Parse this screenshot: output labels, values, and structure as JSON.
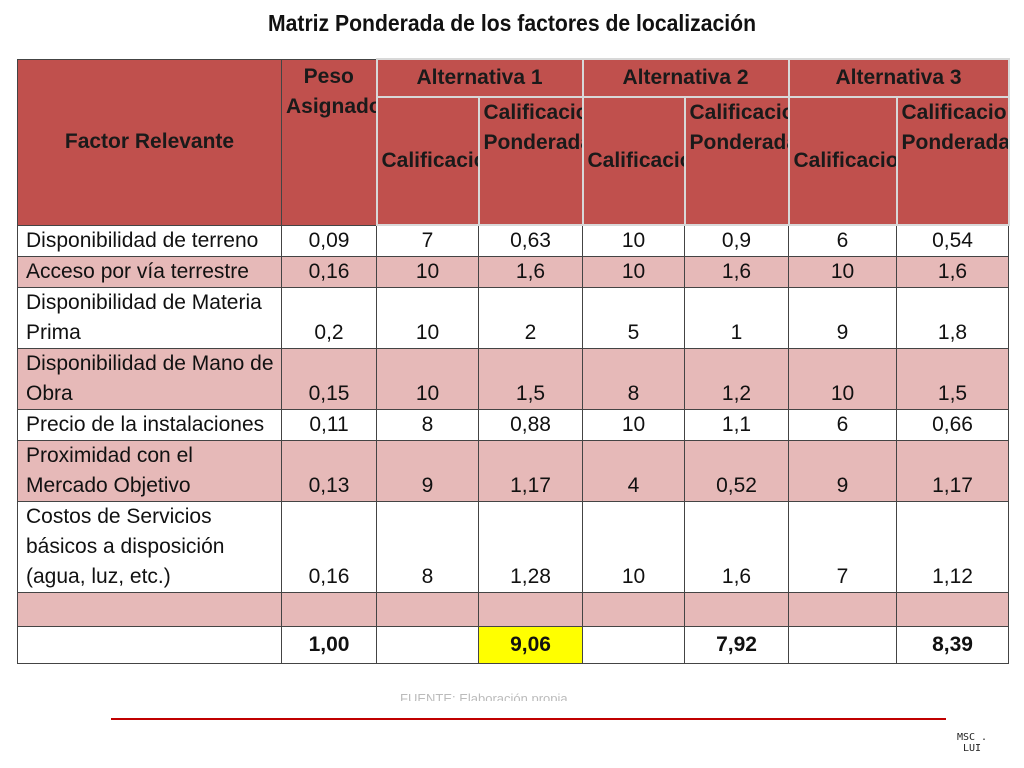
{
  "title": "Matriz Ponderada de los factores de localización",
  "header": {
    "factor": "Factor Relevante",
    "weight": "Peso Asignado",
    "alternatives": [
      "Alternativa 1",
      "Alternativa 2",
      "Alternativa 3"
    ],
    "score_labels": [
      {
        "score": "Calificacion",
        "weighted": "Calificacion Ponderada"
      },
      {
        "score": "Calificacion",
        "weighted": "Calificacion Ponderada"
      },
      {
        "score": "Calificacion",
        "weighted": "Calificacion Ponderada"
      }
    ]
  },
  "rows": [
    {
      "factor": "Disponibilidad de terreno",
      "weight": "0,09",
      "a1": "7",
      "a1w": "0,63",
      "a2": "10",
      "a2w": "0,9",
      "a3": "6",
      "a3w": "0,54"
    },
    {
      "factor": "Acceso por vía terrestre",
      "weight": "0,16",
      "a1": "10",
      "a1w": "1,6",
      "a2": "10",
      "a2w": "1,6",
      "a3": "10",
      "a3w": "1,6"
    },
    {
      "factor": "Disponibilidad de Materia Prima",
      "weight": "0,2",
      "a1": "10",
      "a1w": "2",
      "a2": "5",
      "a2w": "1",
      "a3": "9",
      "a3w": "1,8"
    },
    {
      "factor": "Disponibilidad de Mano de Obra",
      "weight": "0,15",
      "a1": "10",
      "a1w": "1,5",
      "a2": "8",
      "a2w": "1,2",
      "a3": "10",
      "a3w": "1,5"
    },
    {
      "factor": "Precio de la instalaciones",
      "weight": "0,11",
      "a1": "8",
      "a1w": "0,88",
      "a2": "10",
      "a2w": "1,1",
      "a3": "6",
      "a3w": "0,66"
    },
    {
      "factor": "Proximidad con el Mercado Objetivo",
      "weight": "0,13",
      "a1": "9",
      "a1w": "1,17",
      "a2": "4",
      "a2w": "0,52",
      "a3": "9",
      "a3w": "1,17"
    },
    {
      "factor": "Costos de Servicios básicos a disposición (agua, luz, etc.)",
      "weight": "0,16",
      "a1": "8",
      "a1w": "1,28",
      "a2": "10",
      "a2w": "1,6",
      "a3": "7",
      "a3w": "1,12"
    }
  ],
  "totals": {
    "weight": "1,00",
    "a1w": "9,06",
    "a2w": "7,92",
    "a3w": "8,39"
  },
  "highlight_color": "#ffff00",
  "source_note": "FUENTE: Elaboración propia",
  "footer": {
    "author": "MSC . LUI"
  }
}
